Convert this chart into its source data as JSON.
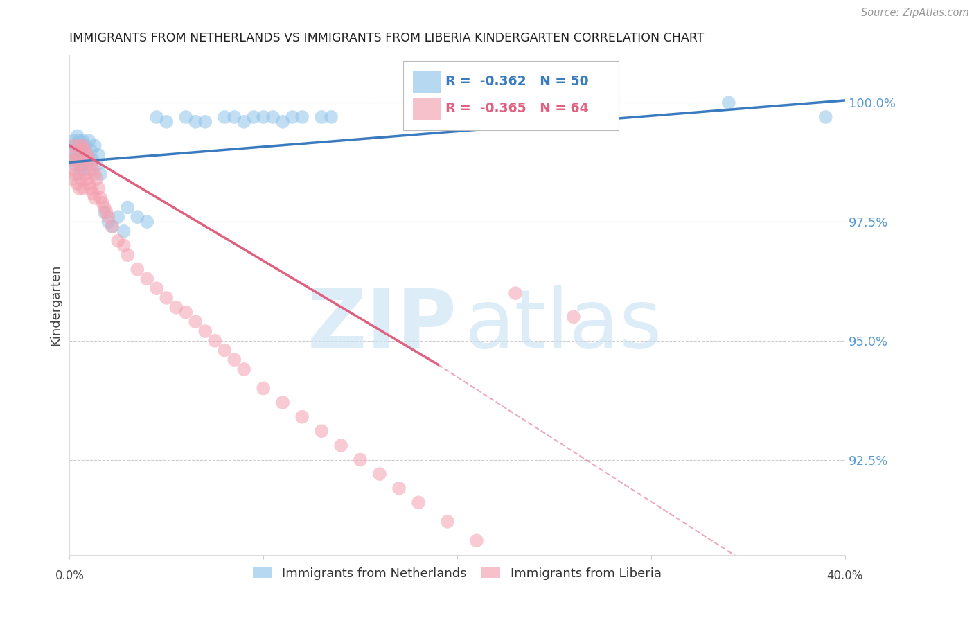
{
  "title": "IMMIGRANTS FROM NETHERLANDS VS IMMIGRANTS FROM LIBERIA KINDERGARTEN CORRELATION CHART",
  "source": "Source: ZipAtlas.com",
  "ylabel": "Kindergarten",
  "ytick_labels": [
    "100.0%",
    "97.5%",
    "95.0%",
    "92.5%"
  ],
  "ytick_values": [
    1.0,
    0.975,
    0.95,
    0.925
  ],
  "x_min": 0.0,
  "x_max": 0.4,
  "y_min": 0.905,
  "y_max": 1.01,
  "legend_blue_r": "-0.362",
  "legend_blue_n": "50",
  "legend_pink_r": "-0.365",
  "legend_pink_n": "64",
  "blue_color": "#8fc3e8",
  "pink_color": "#f4a0b0",
  "blue_line_color": "#3a7abf",
  "pink_line_color": "#e06080",
  "blue_scatter_x": [
    0.001,
    0.002,
    0.002,
    0.003,
    0.003,
    0.004,
    0.004,
    0.005,
    0.005,
    0.005,
    0.006,
    0.006,
    0.007,
    0.007,
    0.008,
    0.009,
    0.01,
    0.01,
    0.011,
    0.012,
    0.013,
    0.014,
    0.015,
    0.016,
    0.018,
    0.02,
    0.022,
    0.025,
    0.028,
    0.03,
    0.035,
    0.04,
    0.045,
    0.05,
    0.06,
    0.065,
    0.07,
    0.08,
    0.085,
    0.09,
    0.095,
    0.1,
    0.105,
    0.11,
    0.115,
    0.12,
    0.13,
    0.135,
    0.34,
    0.39
  ],
  "blue_scatter_y": [
    0.99,
    0.992,
    0.988,
    0.991,
    0.987,
    0.993,
    0.989,
    0.992,
    0.988,
    0.985,
    0.99,
    0.986,
    0.992,
    0.987,
    0.991,
    0.989,
    0.992,
    0.986,
    0.99,
    0.988,
    0.991,
    0.987,
    0.989,
    0.985,
    0.977,
    0.975,
    0.974,
    0.976,
    0.973,
    0.978,
    0.976,
    0.975,
    0.997,
    0.996,
    0.997,
    0.996,
    0.996,
    0.997,
    0.997,
    0.996,
    0.997,
    0.997,
    0.997,
    0.996,
    0.997,
    0.997,
    0.997,
    0.997,
    1.0,
    0.997
  ],
  "pink_scatter_x": [
    0.001,
    0.001,
    0.002,
    0.002,
    0.003,
    0.003,
    0.004,
    0.004,
    0.005,
    0.005,
    0.005,
    0.006,
    0.006,
    0.007,
    0.007,
    0.007,
    0.008,
    0.008,
    0.009,
    0.009,
    0.01,
    0.01,
    0.011,
    0.011,
    0.012,
    0.012,
    0.013,
    0.013,
    0.014,
    0.015,
    0.016,
    0.017,
    0.018,
    0.019,
    0.02,
    0.022,
    0.025,
    0.028,
    0.03,
    0.035,
    0.04,
    0.045,
    0.05,
    0.055,
    0.06,
    0.065,
    0.07,
    0.075,
    0.08,
    0.085,
    0.09,
    0.1,
    0.11,
    0.12,
    0.13,
    0.14,
    0.15,
    0.16,
    0.17,
    0.18,
    0.195,
    0.21,
    0.23,
    0.26
  ],
  "pink_scatter_y": [
    0.988,
    0.984,
    0.991,
    0.986,
    0.989,
    0.985,
    0.988,
    0.983,
    0.991,
    0.987,
    0.982,
    0.99,
    0.984,
    0.991,
    0.987,
    0.982,
    0.99,
    0.985,
    0.989,
    0.984,
    0.988,
    0.983,
    0.987,
    0.982,
    0.986,
    0.981,
    0.985,
    0.98,
    0.984,
    0.982,
    0.98,
    0.979,
    0.978,
    0.977,
    0.976,
    0.974,
    0.971,
    0.97,
    0.968,
    0.965,
    0.963,
    0.961,
    0.959,
    0.957,
    0.956,
    0.954,
    0.952,
    0.95,
    0.948,
    0.946,
    0.944,
    0.94,
    0.937,
    0.934,
    0.931,
    0.928,
    0.925,
    0.922,
    0.919,
    0.916,
    0.912,
    0.908,
    0.96,
    0.955
  ]
}
